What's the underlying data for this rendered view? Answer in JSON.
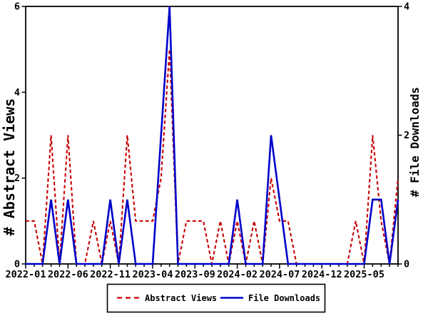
{
  "axis_titles": {
    "left": "# Abstract Views",
    "right": "# File Downloads"
  },
  "legend": {
    "abstract_views": "Abstract Views",
    "file_downloads": "File Downloads"
  },
  "chart_data": {
    "type": "line",
    "title": "",
    "grid": "off",
    "legend_position": "bottom-center",
    "x_categories": [
      "2022-01",
      "2022-02",
      "2022-03",
      "2022-04",
      "2022-05",
      "2022-06",
      "2022-07",
      "2022-08",
      "2022-09",
      "2022-10",
      "2022-11",
      "2022-12",
      "2023-01",
      "2023-02",
      "2023-03",
      "2023-04",
      "2023-05",
      "2023-06",
      "2023-07",
      "2023-08",
      "2023-09",
      "2023-10",
      "2023-11",
      "2023-12",
      "2024-01",
      "2024-02",
      "2024-03",
      "2024-04",
      "2024-05",
      "2024-06",
      "2024-07",
      "2024-08",
      "2024-09",
      "2024-10",
      "2024-11",
      "2024-12",
      "2025-01",
      "2025-02",
      "2025-03",
      "2025-04",
      "2025-05",
      "2025-06",
      "2025-07",
      "2025-08",
      "2025-09"
    ],
    "x_tick_labels": [
      "2022-01",
      "2022-06",
      "2022-11",
      "2023-04",
      "2023-09",
      "2024-02",
      "2024-07",
      "2024-12",
      "2025-05"
    ],
    "x_label_step": 5,
    "left_axis": {
      "label": "# Abstract Views",
      "min": 0,
      "max": 6,
      "ticks": [
        0,
        2,
        4,
        6
      ]
    },
    "right_axis": {
      "label": "# File Downloads",
      "min": 0,
      "max": 4,
      "ticks": [
        0,
        2,
        4
      ]
    },
    "series": [
      {
        "name": "Abstract Views",
        "axis": "left",
        "color": "#c80000",
        "line_style": "dashed",
        "values": [
          1,
          1,
          0,
          3,
          0,
          3,
          0,
          0,
          1,
          0,
          1,
          0,
          3,
          1,
          1,
          1,
          2,
          5,
          0,
          1,
          1,
          1,
          0,
          1,
          0,
          1,
          0,
          1,
          0,
          2,
          1,
          1,
          0,
          0,
          0,
          0,
          0,
          0,
          0,
          1,
          0,
          3,
          1,
          0,
          2
        ]
      },
      {
        "name": "File Downloads",
        "axis": "right",
        "color": "#0000c8",
        "line_style": "solid",
        "values": [
          0,
          0,
          0,
          1,
          0,
          1,
          0,
          0,
          0,
          0,
          1,
          0,
          1,
          0,
          0,
          0,
          2,
          4,
          0,
          0,
          0,
          0,
          0,
          0,
          0,
          1,
          0,
          0,
          0,
          2,
          1,
          0,
          0,
          0,
          0,
          0,
          0,
          0,
          0,
          0,
          0,
          1,
          1,
          0,
          1
        ]
      }
    ]
  }
}
